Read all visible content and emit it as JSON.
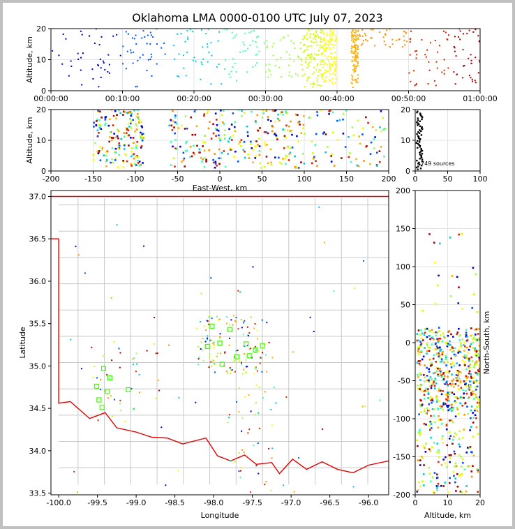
{
  "figure": {
    "title": "Oklahoma LMA 0000-0100 UTC July 07, 2023",
    "source_count_label": "749 sources"
  },
  "chart_data": [
    {
      "id": "time-height",
      "type": "scatter",
      "xlabel": "",
      "ylabel": "Altitude, km",
      "xlim": [
        "00:00:00",
        "01:00:00"
      ],
      "ylim": [
        0,
        20
      ],
      "xticks": [
        "00:00:00",
        "00:10:00",
        "00:20:00",
        "00:30:00",
        "00:40:00",
        "00:50:00",
        "01:00:00"
      ],
      "yticks": [
        0,
        10,
        20
      ],
      "grid": true,
      "color_scale": "time (blue → green → yellow → orange → red)",
      "clusters": [
        {
          "t_min": [
            0,
            10
          ],
          "alt_km": [
            1,
            20
          ],
          "color": "#0000c8"
        },
        {
          "t_min": [
            10,
            16
          ],
          "alt_km": [
            1,
            20
          ],
          "color": "#0050ff"
        },
        {
          "t_min": [
            17,
            24
          ],
          "alt_km": [
            1,
            20
          ],
          "color": "#00c8e0"
        },
        {
          "t_min": [
            24,
            30
          ],
          "alt_km": [
            3,
            20
          ],
          "color": "#40ffb0"
        },
        {
          "t_min": [
            30,
            35
          ],
          "alt_km": [
            3,
            18
          ],
          "color": "#a0ff40"
        },
        {
          "t_min": [
            35,
            38
          ],
          "alt_km": [
            1,
            20
          ],
          "color": "#d4ff00"
        },
        {
          "t_min": [
            38,
            40
          ],
          "alt_km": [
            2,
            20
          ],
          "color": "#ffff00"
        },
        {
          "t_min": [
            42,
            43
          ],
          "alt_km": [
            1,
            20
          ],
          "color": "#ffb000"
        },
        {
          "t_min": [
            43,
            50
          ],
          "alt_km": [
            14,
            20
          ],
          "color": "#ff9000"
        },
        {
          "t_min": [
            50,
            56
          ],
          "alt_km": [
            1,
            20
          ],
          "color": "#e02000"
        },
        {
          "t_min": [
            56,
            60
          ],
          "alt_km": [
            1,
            20
          ],
          "color": "#a00000"
        }
      ]
    },
    {
      "id": "ew-altitude",
      "type": "scatter",
      "xlabel": "East-West, km",
      "ylabel": "Altitude, km",
      "xlim": [
        -200,
        200
      ],
      "ylim": [
        0,
        20
      ],
      "xticks": [
        -200,
        -150,
        -100,
        -50,
        0,
        50,
        100,
        150,
        200
      ],
      "yticks": [
        0,
        10,
        20
      ],
      "grid": true
    },
    {
      "id": "alt-histogram",
      "type": "line",
      "xlabel": "",
      "ylabel": "",
      "xlim": [
        0,
        100
      ],
      "ylim": [
        0,
        20
      ],
      "xticks": [
        0,
        50,
        100
      ],
      "yticks": [
        0,
        10,
        20
      ],
      "grid": true,
      "annotation": "749 sources"
    },
    {
      "id": "plan-view",
      "type": "scatter",
      "xlabel": "Longitude",
      "ylabel": "Latitude",
      "xlim": [
        -100.1,
        -95.74
      ],
      "ylim": [
        33.48,
        37.07
      ],
      "xticks": [
        -100.0,
        -99.5,
        -99.0,
        -98.5,
        -98.0,
        -97.5,
        -97.0,
        -96.5,
        -96.0
      ],
      "yticks": [
        33.5,
        34.0,
        34.5,
        35.0,
        35.5,
        36.0,
        36.5,
        37.0
      ],
      "grid": false,
      "stations": [
        {
          "lon": -99.42,
          "lat": 34.97
        },
        {
          "lon": -99.34,
          "lat": 34.86
        },
        {
          "lon": -99.51,
          "lat": 34.76
        },
        {
          "lon": -99.37,
          "lat": 34.7
        },
        {
          "lon": -99.48,
          "lat": 34.6
        },
        {
          "lon": -99.44,
          "lat": 34.51
        },
        {
          "lon": -99.1,
          "lat": 34.72
        },
        {
          "lon": -98.08,
          "lat": 35.23
        },
        {
          "lon": -98.02,
          "lat": 35.47
        },
        {
          "lon": -97.92,
          "lat": 35.27
        },
        {
          "lon": -97.89,
          "lat": 35.02
        },
        {
          "lon": -97.79,
          "lat": 35.43
        },
        {
          "lon": -97.7,
          "lat": 35.11
        },
        {
          "lon": -97.58,
          "lat": 35.26
        },
        {
          "lon": -97.54,
          "lat": 35.12
        },
        {
          "lon": -97.46,
          "lat": 35.19
        },
        {
          "lon": -97.37,
          "lat": 35.24
        }
      ]
    },
    {
      "id": "ns-altitude",
      "type": "scatter",
      "xlabel": "Altitude, km",
      "ylabel": "North-South, km",
      "xlim": [
        0,
        20
      ],
      "ylim": [
        -200,
        200
      ],
      "xticks": [
        0,
        10,
        20
      ],
      "yticks": [
        -200,
        -150,
        -100,
        -50,
        0,
        50,
        100,
        150,
        200
      ],
      "grid": true
    }
  ]
}
